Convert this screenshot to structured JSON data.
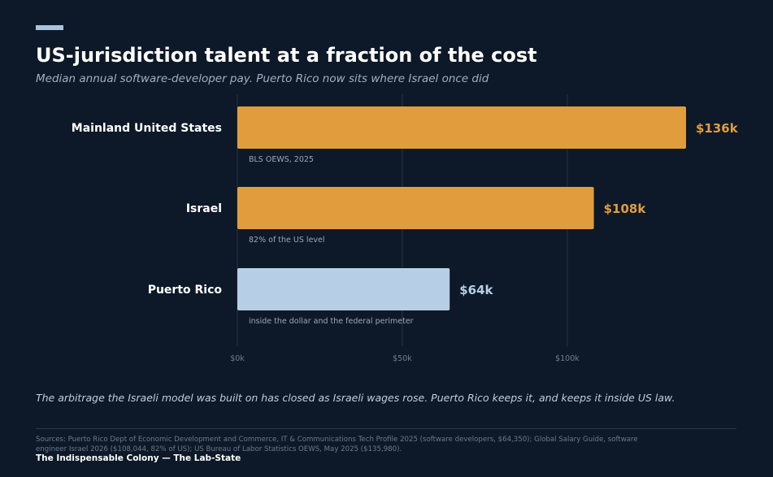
{
  "header": {
    "title": "US-jurisdiction talent at a fraction of the cost",
    "subtitle": "Median annual software-developer pay. Puerto Rico now sits where Israel once did"
  },
  "chart_data": {
    "type": "bar",
    "orientation": "horizontal",
    "categories": [
      "Mainland United States",
      "Israel",
      "Puerto Rico"
    ],
    "values": [
      135980,
      108044,
      64350
    ],
    "value_labels": [
      "$136k",
      "$108k",
      "$64k"
    ],
    "notes": [
      "BLS OEWS, 2025",
      "82% of the US level",
      "inside the dollar and the federal perimeter"
    ],
    "colors": [
      "#e19d3d",
      "#e19d3d",
      "#b7cfe6"
    ],
    "label_colors": [
      "#e19d3d",
      "#e19d3d",
      "#b7cfe6"
    ],
    "xlim": [
      0,
      135980
    ],
    "x_ticks": [
      0,
      50000,
      100000
    ],
    "x_tick_labels": [
      "$0k",
      "$50k",
      "$100k"
    ],
    "grid": true
  },
  "takeaway": "The arbitrage the Israeli model was built on has closed as Israeli wages rose. Puerto Rico keeps it, and keeps it inside US law.",
  "sources": "Sources: Puerto Rico Dept of Economic Development and Commerce, IT & Communications Tech Profile 2025 (software developers, $64,350); Global Salary Guide, software engineer Israel 2026 ($108,044, 82% of US); US Bureau of Labor Statistics OEWS, May 2025 ($135,980).",
  "footer": "The Indispensable Colony  —  The Lab-State"
}
